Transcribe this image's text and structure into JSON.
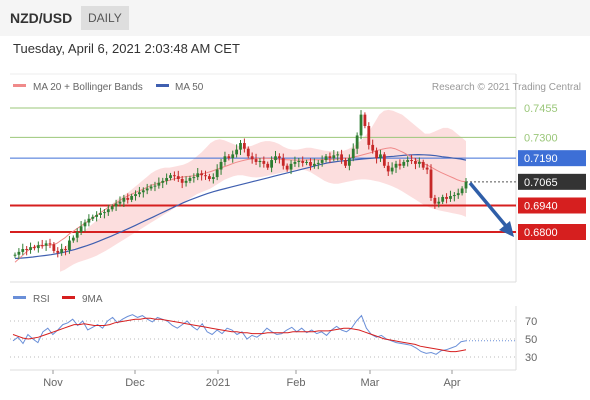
{
  "header": {
    "pair": "NZD/USD",
    "timeframe": "DAILY",
    "datetime": "Tuesday, April 6, 2021 2:03:48 AM CET"
  },
  "legend": {
    "ma20_label": "MA 20 + Bollinger Bands",
    "ma50_label": "MA 50",
    "credit": "Research © 2021 Trading Central",
    "rsi_label": "RSI",
    "rsi_ma_label": "9MA"
  },
  "colors": {
    "candle_up": "#2e7d32",
    "candle_down": "#c62828",
    "bollinger_fill": "#fbd3d3",
    "ma20": "#f08a8a",
    "ma50": "#3f5fb0",
    "resistance": "#9bc77a",
    "pivot": "#3d6fd6",
    "support": "#d61f1f",
    "current": "#333333",
    "rsi": "#6a8fd8",
    "rsi_ma": "#d61f1f",
    "arrow": "#2f5ea8"
  },
  "chart_data": [
    {
      "type": "candlestick",
      "name": "NZD/USD daily",
      "price_range": [
        0.664,
        0.75
      ],
      "x_tick_labels": [
        "Nov",
        "Dec",
        "2021",
        "Feb",
        "Mar",
        "Apr"
      ],
      "levels": [
        {
          "value": 0.7455,
          "label": "0.7455",
          "kind": "resistance"
        },
        {
          "value": 0.73,
          "label": "0.7300",
          "kind": "resistance"
        },
        {
          "value": 0.719,
          "label": "0.7190",
          "kind": "pivot"
        },
        {
          "value": 0.7065,
          "label": "0.7065",
          "kind": "current"
        },
        {
          "value": 0.694,
          "label": "0.6940",
          "kind": "support"
        },
        {
          "value": 0.68,
          "label": "0.6800",
          "kind": "support"
        }
      ],
      "close": [
        0.668,
        0.6695,
        0.671,
        0.6705,
        0.672,
        0.6715,
        0.673,
        0.6728,
        0.674,
        0.6735,
        0.67,
        0.669,
        0.671,
        0.6705,
        0.6755,
        0.677,
        0.68,
        0.683,
        0.685,
        0.687,
        0.688,
        0.689,
        0.69,
        0.6905,
        0.692,
        0.6935,
        0.695,
        0.696,
        0.698,
        0.697,
        0.699,
        0.7,
        0.701,
        0.702,
        0.703,
        0.704,
        0.7045,
        0.706,
        0.707,
        0.7085,
        0.71,
        0.7095,
        0.708,
        0.706,
        0.707,
        0.7085,
        0.709,
        0.711,
        0.71,
        0.7095,
        0.708,
        0.709,
        0.713,
        0.717,
        0.72,
        0.719,
        0.721,
        0.7235,
        0.727,
        0.724,
        0.72,
        0.7185,
        0.717,
        0.7175,
        0.716,
        0.714,
        0.718,
        0.72,
        0.719,
        0.715,
        0.713,
        0.716,
        0.717,
        0.7175,
        0.7165,
        0.717,
        0.715,
        0.716,
        0.7165,
        0.718,
        0.72,
        0.719,
        0.7205,
        0.721,
        0.718,
        0.715,
        0.719,
        0.724,
        0.731,
        0.742,
        0.736,
        0.726,
        0.723,
        0.719,
        0.721,
        0.715,
        0.712,
        0.714,
        0.716,
        0.715,
        0.717,
        0.718,
        0.7175,
        0.716,
        0.717,
        0.714,
        0.713,
        0.698,
        0.695,
        0.696,
        0.6985,
        0.6975,
        0.699,
        0.6995,
        0.7005,
        0.703,
        0.7065
      ],
      "ma20": [
        0.664,
        0.666,
        0.668,
        0.67,
        0.6715,
        0.6725,
        0.673,
        0.6728,
        0.673,
        0.6733,
        0.674,
        0.6755,
        0.677,
        0.679,
        0.6805,
        0.682,
        0.6835,
        0.685,
        0.6865,
        0.688,
        0.6895,
        0.691,
        0.6925,
        0.694,
        0.695,
        0.6965,
        0.698,
        0.699,
        0.7,
        0.701,
        0.702,
        0.703,
        0.704,
        0.705,
        0.7055,
        0.7062,
        0.7068,
        0.7073,
        0.708,
        0.7085,
        0.709,
        0.7093,
        0.7095,
        0.7098,
        0.7102,
        0.7108,
        0.7114,
        0.712,
        0.7128,
        0.7136,
        0.7144,
        0.7152,
        0.716,
        0.7168,
        0.7174,
        0.718,
        0.7184,
        0.7186,
        0.7188,
        0.719,
        0.719,
        0.7189,
        0.7187,
        0.7185,
        0.7183,
        0.7182,
        0.7181,
        0.718,
        0.718,
        0.718,
        0.7181,
        0.7182,
        0.7182,
        0.7182,
        0.7183,
        0.7183,
        0.7184,
        0.7185,
        0.7187,
        0.7189,
        0.7192,
        0.7196,
        0.72,
        0.7206,
        0.7212,
        0.7218,
        0.7225,
        0.7232,
        0.7238,
        0.7242,
        0.7245,
        0.724,
        0.723,
        0.722,
        0.7208,
        0.7195,
        0.7182,
        0.717,
        0.716,
        0.715,
        0.7138,
        0.7126,
        0.7115,
        0.7105,
        0.7095,
        0.7085,
        0.7075,
        0.7068,
        0.7065
      ],
      "bb_upper": [
        0.671,
        0.672,
        0.674,
        0.676,
        0.678,
        0.68,
        0.682,
        0.684,
        0.686,
        0.688,
        0.691,
        0.694,
        0.696,
        0.698,
        0.6995,
        0.701,
        0.703,
        0.705,
        0.707,
        0.709,
        0.711,
        0.7125,
        0.7135,
        0.714,
        0.714,
        0.7145,
        0.715,
        0.7155,
        0.7165,
        0.718,
        0.72,
        0.722,
        0.7245,
        0.727,
        0.7285,
        0.729,
        0.7285,
        0.7275,
        0.7265,
        0.7255,
        0.725,
        0.725,
        0.7255,
        0.7265,
        0.7275,
        0.728,
        0.728,
        0.7275,
        0.7265,
        0.725,
        0.724,
        0.7235,
        0.7235,
        0.724,
        0.7245,
        0.7245,
        0.724,
        0.7235,
        0.723,
        0.7228,
        0.7226,
        0.7225,
        0.7228,
        0.7236,
        0.7248,
        0.7265,
        0.7285,
        0.731,
        0.734,
        0.738,
        0.742,
        0.744,
        0.7445,
        0.744,
        0.743,
        0.742,
        0.74,
        0.738,
        0.736,
        0.734,
        0.732,
        0.732,
        0.733,
        0.734,
        0.735,
        0.735,
        0.734,
        0.732,
        0.73,
        0.728
      ],
      "bb_lower": [
        0.659,
        0.66,
        0.6615,
        0.663,
        0.664,
        0.6648,
        0.6656,
        0.6665,
        0.6675,
        0.6688,
        0.67,
        0.6715,
        0.673,
        0.6745,
        0.676,
        0.6775,
        0.679,
        0.6805,
        0.682,
        0.6835,
        0.685,
        0.6865,
        0.688,
        0.6895,
        0.691,
        0.6925,
        0.694,
        0.6955,
        0.697,
        0.6985,
        0.7,
        0.701,
        0.702,
        0.703,
        0.7045,
        0.706,
        0.7075,
        0.7085,
        0.7095,
        0.71,
        0.71,
        0.7095,
        0.709,
        0.7088,
        0.709,
        0.7095,
        0.71,
        0.7105,
        0.711,
        0.7115,
        0.712,
        0.7125,
        0.713,
        0.713,
        0.7125,
        0.7115,
        0.71,
        0.7085,
        0.707,
        0.706,
        0.7055,
        0.7055,
        0.706,
        0.7065,
        0.707,
        0.7075,
        0.7078,
        0.7078,
        0.7075,
        0.707,
        0.7065,
        0.7058,
        0.705,
        0.704,
        0.7028,
        0.7015,
        0.7,
        0.6985,
        0.697,
        0.6955,
        0.694,
        0.693,
        0.6922,
        0.6915,
        0.691,
        0.6905,
        0.69,
        0.6895,
        0.689,
        0.688
      ],
      "ma50": [
        0.666,
        0.6662,
        0.6665,
        0.6668,
        0.6672,
        0.6676,
        0.668,
        0.6686,
        0.6692,
        0.67,
        0.6708,
        0.6718,
        0.6728,
        0.674,
        0.6752,
        0.6765,
        0.6778,
        0.6792,
        0.6806,
        0.682,
        0.6835,
        0.685,
        0.6865,
        0.688,
        0.6895,
        0.691,
        0.6925,
        0.694,
        0.6955,
        0.6968,
        0.698,
        0.6992,
        0.7003,
        0.7013,
        0.7022,
        0.703,
        0.7038,
        0.7046,
        0.7054,
        0.7062,
        0.707,
        0.7078,
        0.7086,
        0.7094,
        0.7102,
        0.711,
        0.7118,
        0.7126,
        0.7134,
        0.7142,
        0.715,
        0.7158,
        0.7165,
        0.717,
        0.7174,
        0.7177,
        0.718,
        0.7183,
        0.7186,
        0.7189,
        0.7192,
        0.7195,
        0.7198,
        0.72,
        0.7203,
        0.7206,
        0.7208,
        0.7209,
        0.7208,
        0.7206,
        0.7203,
        0.7198,
        0.7194,
        0.719,
        0.7186,
        0.718
      ]
    },
    {
      "type": "line",
      "name": "RSI",
      "y_ticks": [
        70,
        50,
        30
      ],
      "ylim": [
        20,
        80
      ],
      "series": [
        {
          "name": "RSI",
          "values": [
            48,
            52,
            45,
            55,
            50,
            46,
            58,
            62,
            55,
            60,
            66,
            68,
            72,
            65,
            70,
            60,
            63,
            66,
            62,
            70,
            74,
            68,
            72,
            75,
            77,
            74,
            76,
            72,
            69,
            74,
            72,
            70,
            65,
            62,
            66,
            70,
            64,
            60,
            67,
            58,
            55,
            60,
            56,
            62,
            60,
            55,
            58,
            50,
            54,
            52,
            56,
            62,
            58,
            55,
            56,
            60,
            63,
            58,
            62,
            57,
            60,
            56,
            58,
            54,
            60,
            64,
            60,
            58,
            62,
            70,
            76,
            62,
            55,
            52,
            54,
            50,
            48,
            46,
            45,
            44,
            43,
            40,
            36,
            34,
            35,
            33,
            37,
            38,
            40,
            42,
            47,
            48
          ]
        },
        {
          "name": "9MA",
          "values": [
            55,
            53,
            51,
            50,
            51,
            52,
            54,
            56,
            58,
            60,
            62,
            64,
            66,
            66,
            67,
            66,
            65,
            65,
            65,
            66,
            68,
            69,
            70,
            71,
            72,
            72,
            73,
            73,
            72,
            72,
            71,
            70,
            69,
            68,
            67,
            66,
            65,
            64,
            63,
            62,
            61,
            60,
            59,
            58,
            58,
            57,
            57,
            56,
            56,
            56,
            57,
            57,
            57,
            57,
            57,
            58,
            58,
            58,
            58,
            58,
            59,
            59,
            59,
            60,
            61,
            62,
            62,
            61,
            60,
            58,
            56,
            54,
            52,
            50,
            49,
            48,
            47,
            46,
            45,
            44,
            42,
            41,
            40,
            39,
            38,
            37,
            36,
            36,
            37,
            38
          ]
        }
      ]
    }
  ]
}
